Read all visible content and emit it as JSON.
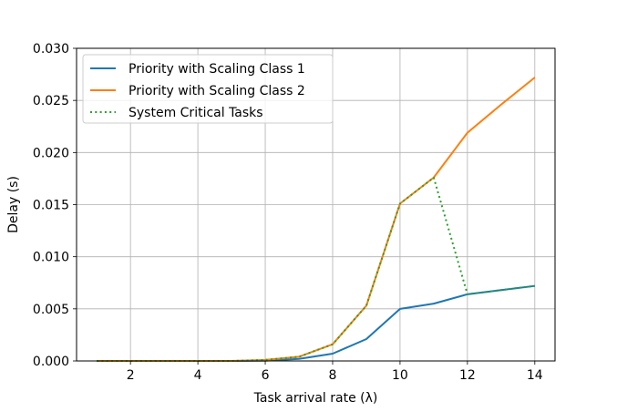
{
  "chart_data": {
    "type": "line",
    "xlabel": "Task arrival rate (λ)",
    "ylabel": "Delay (s)",
    "xlim": [
      0.4,
      14.6
    ],
    "ylim": [
      0,
      0.03
    ],
    "xticks": [
      2,
      4,
      6,
      8,
      10,
      12,
      14
    ],
    "xtick_labels": [
      "2",
      "4",
      "6",
      "8",
      "10",
      "12",
      "14"
    ],
    "yticks": [
      0,
      0.005,
      0.01,
      0.015,
      0.02,
      0.025,
      0.03
    ],
    "ytick_labels": [
      "0.000",
      "0.005",
      "0.010",
      "0.015",
      "0.020",
      "0.025",
      "0.030"
    ],
    "grid": true,
    "legend_position": "upper-left",
    "series": [
      {
        "name": "Priority with Scaling Class 1",
        "color": "#1f77b4",
        "style": "solid",
        "x": [
          1,
          2,
          3,
          4,
          5,
          6,
          7,
          8,
          9,
          10,
          11,
          12,
          13,
          14
        ],
        "y": [
          0,
          0,
          0,
          0,
          0,
          2e-05,
          0.0002,
          0.0007,
          0.0021,
          0.005,
          0.0055,
          0.0064,
          0.0068,
          0.0072
        ]
      },
      {
        "name": "Priority with Scaling Class 2",
        "color": "#ff7f0e",
        "style": "solid",
        "x": [
          1,
          2,
          3,
          4,
          5,
          6,
          7,
          8,
          9,
          10,
          11,
          12,
          13,
          14
        ],
        "y": [
          0,
          0,
          0,
          0,
          0,
          0.0001,
          0.0004,
          0.0016,
          0.0053,
          0.0151,
          0.0176,
          0.0219,
          0.0246,
          0.0272
        ]
      },
      {
        "name": "System Critical Tasks",
        "color": "#2ca02c",
        "style": "dotted",
        "x": [
          1,
          2,
          3,
          4,
          5,
          6,
          7,
          8,
          9,
          10,
          11,
          12,
          13,
          14
        ],
        "y": [
          0,
          0,
          0,
          0,
          0,
          0.0001,
          0.0004,
          0.0016,
          0.0053,
          0.0151,
          0.0176,
          0.0064,
          0.0068,
          0.0072
        ]
      }
    ]
  }
}
